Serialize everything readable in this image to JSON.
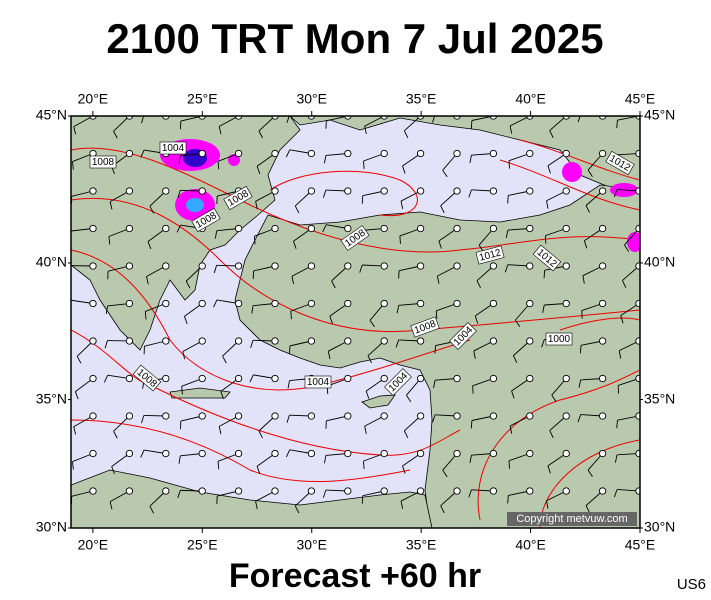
{
  "title": "2100 TRT Mon 7 Jul 2025",
  "footer": "Forecast +60 hr",
  "code": "US6",
  "copyright": "Copyright metvuw.com",
  "map": {
    "lonlim": [
      19,
      45
    ],
    "latlim": [
      30,
      45
    ],
    "lonticks": [
      {
        "value": 20,
        "label": "20°E"
      },
      {
        "value": 25,
        "label": "25°E"
      },
      {
        "value": 30,
        "label": "30°E"
      },
      {
        "value": 35,
        "label": "35°E"
      },
      {
        "value": 40,
        "label": "40°E"
      },
      {
        "value": 45,
        "label": "45°E"
      }
    ],
    "latticks": [
      {
        "value": 30,
        "label": "30°N"
      },
      {
        "value": 35,
        "label": "35°N"
      },
      {
        "value": 40,
        "label": "40°N"
      },
      {
        "value": 45,
        "label": "45°N"
      }
    ],
    "isobar_labels": [
      "1004",
      "1008",
      "1008",
      "1008",
      "1008",
      "1012",
      "1012",
      "1012",
      "1008",
      "1004",
      "1000",
      "1008",
      "1004",
      "1004"
    ]
  }
}
